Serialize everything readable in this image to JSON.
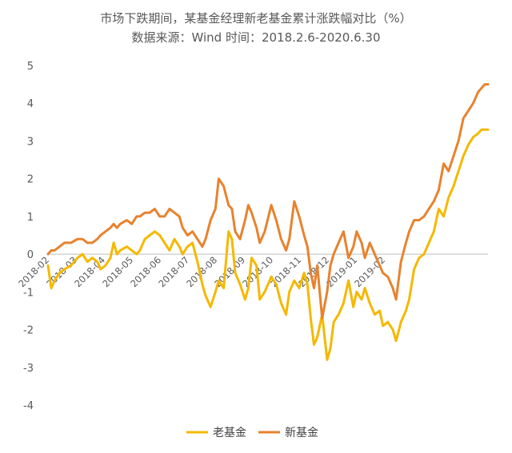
{
  "chart_data": {
    "type": "line",
    "title": "市场下跌期间，某基金经理新老基金累计涨跌幅对比（%）",
    "subtitle": "数据来源：Wind 时间：2018.2.6-2020.6.30",
    "ylim": [
      -4,
      5
    ],
    "yticks": [
      5,
      4,
      3,
      2,
      1,
      0,
      -1,
      -2,
      -3,
      -4
    ],
    "xticks": [
      "2018-02",
      "2018-03",
      "2018-04",
      "2018-05",
      "2018-06",
      "2018-07",
      "2018-08",
      "2018-09",
      "2018-10",
      "2018-11",
      "2018-12",
      "2019-01",
      "2019-02"
    ],
    "series": [
      {
        "name": "老基金",
        "color": "#F5B800",
        "x": [
          0,
          0.1,
          0.2,
          0.35,
          0.5,
          0.7,
          0.9,
          1.05,
          1.2,
          1.35,
          1.5,
          1.6,
          1.75,
          1.9,
          2.0,
          2.1,
          2.2,
          2.4,
          2.55,
          2.7,
          2.8,
          2.95,
          3.1,
          3.25,
          3.4,
          3.55,
          3.7,
          3.85,
          4.0,
          4.1,
          4.25,
          4.4,
          4.55,
          4.7,
          4.8,
          4.95,
          5.1,
          5.2,
          5.35,
          5.5,
          5.6,
          5.7,
          5.85,
          6.0,
          6.1,
          6.2,
          6.35,
          6.45,
          6.6,
          6.8,
          6.95,
          7.1,
          7.25,
          7.35,
          7.5,
          7.65,
          7.8,
          7.9,
          8.0,
          8.1,
          8.2,
          8.35,
          8.5,
          8.6,
          8.7,
          8.85,
          9.0,
          9.15,
          9.3,
          9.4,
          9.55,
          9.65,
          9.8,
          9.95,
          10.1,
          10.2,
          10.35,
          10.5,
          10.6,
          10.75,
          10.9,
          11.0,
          11.15,
          11.3,
          11.45,
          11.6,
          11.75,
          11.9,
          12.05,
          12.2,
          12.35,
          12.5,
          12.65,
          12.8,
          12.95,
          13.1,
          13.2,
          13.3,
          13.4
        ],
        "values": [
          -0.3,
          -0.9,
          -0.7,
          -0.5,
          -0.4,
          -0.3,
          -0.1,
          0.0,
          -0.2,
          -0.1,
          -0.2,
          -0.4,
          -0.3,
          -0.1,
          0.3,
          0.0,
          0.1,
          0.2,
          0.1,
          0.0,
          0.1,
          0.4,
          0.5,
          0.6,
          0.5,
          0.3,
          0.1,
          0.4,
          0.2,
          0.0,
          0.2,
          0.3,
          -0.2,
          -0.8,
          -1.1,
          -1.4,
          -1.0,
          -0.7,
          -0.9,
          0.6,
          0.4,
          -0.5,
          -0.8,
          -1.2,
          -0.9,
          -0.1,
          -0.3,
          -1.2,
          -1.0,
          -0.6,
          -0.8,
          -1.3,
          -1.6,
          -1.0,
          -0.7,
          -0.9,
          -0.5,
          -0.8,
          -1.7,
          -2.4,
          -2.2,
          -1.6,
          -2.8,
          -2.5,
          -1.8,
          -1.6,
          -1.3,
          -0.7,
          -1.4,
          -1.0,
          -1.2,
          -0.9,
          -1.3,
          -1.6,
          -1.5,
          -1.9,
          -1.8,
          -2.0,
          -2.3,
          -1.8,
          -1.5,
          -1.2,
          -0.4,
          -0.1,
          0.0,
          0.3,
          0.6,
          1.2,
          1.0,
          1.5,
          1.8,
          2.2,
          2.6,
          2.9,
          3.1,
          3.2,
          3.3,
          3.3,
          3.3
        ]
      },
      {
        "name": "新基金",
        "color": "#E8822E",
        "x": [
          0,
          0.1,
          0.2,
          0.35,
          0.5,
          0.7,
          0.9,
          1.05,
          1.2,
          1.35,
          1.5,
          1.6,
          1.75,
          1.9,
          2.0,
          2.1,
          2.2,
          2.4,
          2.55,
          2.7,
          2.8,
          2.95,
          3.1,
          3.25,
          3.4,
          3.55,
          3.7,
          3.85,
          4.0,
          4.1,
          4.25,
          4.4,
          4.55,
          4.7,
          4.8,
          4.95,
          5.1,
          5.2,
          5.35,
          5.5,
          5.6,
          5.7,
          5.85,
          6.0,
          6.1,
          6.2,
          6.35,
          6.45,
          6.6,
          6.8,
          6.95,
          7.1,
          7.25,
          7.35,
          7.5,
          7.65,
          7.8,
          7.9,
          8.0,
          8.1,
          8.2,
          8.35,
          8.5,
          8.6,
          8.7,
          8.85,
          9.0,
          9.15,
          9.3,
          9.4,
          9.55,
          9.65,
          9.8,
          9.95,
          10.1,
          10.2,
          10.35,
          10.5,
          10.6,
          10.75,
          10.9,
          11.0,
          11.15,
          11.3,
          11.45,
          11.6,
          11.75,
          11.9,
          12.05,
          12.2,
          12.35,
          12.5,
          12.65,
          12.8,
          12.95,
          13.1,
          13.2,
          13.3,
          13.4
        ],
        "values": [
          0.0,
          0.1,
          0.1,
          0.2,
          0.3,
          0.3,
          0.4,
          0.4,
          0.3,
          0.3,
          0.4,
          0.5,
          0.6,
          0.7,
          0.8,
          0.7,
          0.8,
          0.9,
          0.8,
          1.0,
          1.0,
          1.1,
          1.1,
          1.2,
          1.0,
          1.0,
          1.2,
          1.1,
          1.0,
          0.7,
          0.5,
          0.6,
          0.4,
          0.2,
          0.4,
          0.9,
          1.2,
          2.0,
          1.8,
          1.3,
          1.2,
          0.6,
          0.4,
          0.9,
          1.3,
          1.1,
          0.7,
          0.3,
          0.6,
          1.3,
          0.9,
          0.4,
          0.1,
          0.4,
          1.4,
          1.0,
          0.5,
          0.2,
          -0.5,
          -0.9,
          -0.3,
          -1.7,
          -1.0,
          -0.3,
          0.0,
          0.3,
          0.6,
          -0.1,
          0.2,
          0.6,
          0.3,
          -0.1,
          0.3,
          0.0,
          -0.3,
          -0.5,
          -0.6,
          -0.9,
          -1.2,
          -0.2,
          0.3,
          0.6,
          0.9,
          0.9,
          1.0,
          1.2,
          1.4,
          1.7,
          2.4,
          2.2,
          2.6,
          3.0,
          3.6,
          3.8,
          4.0,
          4.3,
          4.4,
          4.5,
          4.5
        ]
      }
    ],
    "legend_position": "bottom",
    "grid": false
  }
}
